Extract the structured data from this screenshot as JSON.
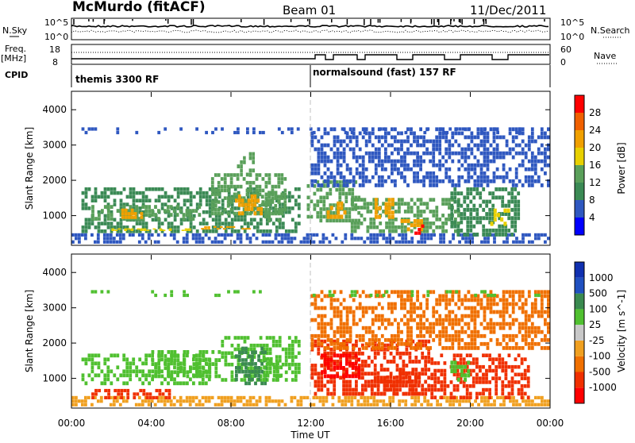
{
  "header": {
    "title": "McMurdo (fitACF)",
    "beam": "Beam 01",
    "date": "11/Dec/2011"
  },
  "noise_panel": {
    "left_label": "N.Sky",
    "right_label": "N.Search",
    "left_ticks": [
      "10^5",
      "10^0"
    ],
    "right_ticks": [
      "10^5",
      "10^0"
    ]
  },
  "freq_panel": {
    "left_label_1": "Freq.",
    "left_label_2": "[MHz]",
    "left_ticks": [
      "18",
      "8"
    ],
    "right_label": "Nave",
    "right_ticks": [
      "60",
      "0"
    ]
  },
  "cpid_panel": {
    "label": "CPID",
    "segments": [
      {
        "name": "themis 3300 RF",
        "start_hour": 0
      },
      {
        "name": "normalsound (fast) 157 RF",
        "start_hour": 12
      }
    ]
  },
  "colors": {
    "power": [
      "#0000ff",
      "#2f58c0",
      "#3b8a55",
      "#5aa05a",
      "#e8d000",
      "#f0a000",
      "#f06000",
      "#ff0000"
    ],
    "velocity": [
      "#ff0000",
      "#f03000",
      "#f07000",
      "#f0a020",
      "#c8c8c8",
      "#50c030",
      "#3a8a50",
      "#2050c0",
      "#1030b0"
    ]
  },
  "chart_data": [
    {
      "type": "heatmap",
      "title": "",
      "xlabel": "",
      "ylabel": "Slant Range [km]",
      "xlim": [
        0,
        24
      ],
      "ylim": [
        180,
        4500
      ],
      "yticks": [
        "1000",
        "2000",
        "3000",
        "4000"
      ],
      "colorbar": {
        "label": "Power [dB]",
        "ticks": [
          "28",
          "24",
          "20",
          "16",
          "12",
          "8",
          "4"
        ],
        "range": [
          0,
          30
        ]
      },
      "regions": [
        {
          "t0": 0.0,
          "t1": 24.0,
          "r0": 200,
          "r1": 500,
          "level": 6
        },
        {
          "t0": 0.5,
          "t1": 11.5,
          "r0": 500,
          "r1": 1800,
          "level": 8
        },
        {
          "t0": 1.0,
          "t1": 6.5,
          "r0": 850,
          "r1": 1300,
          "level": 14
        },
        {
          "t0": 2.5,
          "t1": 3.6,
          "r0": 900,
          "r1": 1200,
          "level": 20
        },
        {
          "t0": 2.0,
          "t1": 6.0,
          "r0": 560,
          "r1": 640,
          "level": 18
        },
        {
          "t0": 7.0,
          "t1": 10.8,
          "r0": 1000,
          "r1": 2200,
          "level": 14
        },
        {
          "t0": 8.2,
          "t1": 9.6,
          "r0": 1000,
          "r1": 1600,
          "level": 22
        },
        {
          "t0": 6.5,
          "t1": 9.0,
          "r0": 600,
          "r1": 700,
          "level": 20
        },
        {
          "t0": 8.3,
          "t1": 9.2,
          "r0": 2100,
          "r1": 2800,
          "level": 12
        },
        {
          "t0": 9.5,
          "t1": 10.5,
          "r0": 800,
          "r1": 1700,
          "level": 14
        },
        {
          "t0": 11.8,
          "t1": 14.5,
          "r0": 800,
          "r1": 2000,
          "level": 14
        },
        {
          "t0": 12.8,
          "t1": 13.8,
          "r0": 900,
          "r1": 1400,
          "level": 22
        },
        {
          "t0": 14.0,
          "t1": 19.5,
          "r0": 500,
          "r1": 1500,
          "level": 12
        },
        {
          "t0": 15.2,
          "t1": 16.2,
          "r0": 900,
          "r1": 1500,
          "level": 20
        },
        {
          "t0": 16.5,
          "t1": 17.8,
          "r0": 550,
          "r1": 900,
          "level": 22
        },
        {
          "t0": 17.2,
          "t1": 17.7,
          "r0": 450,
          "r1": 750,
          "level": 28
        },
        {
          "t0": 19.0,
          "t1": 22.5,
          "r0": 400,
          "r1": 1800,
          "level": 10
        },
        {
          "t0": 21.0,
          "t1": 22.0,
          "r0": 700,
          "r1": 1200,
          "level": 18
        },
        {
          "t0": 12.0,
          "t1": 24.0,
          "r0": 1800,
          "r1": 3500,
          "level": 6
        },
        {
          "t0": 0.5,
          "t1": 24.0,
          "r0": 3300,
          "r1": 3500,
          "level": 4
        }
      ]
    },
    {
      "type": "heatmap",
      "title": "",
      "xlabel": "Time UT",
      "ylabel": "Slant Range [km]",
      "xlim": [
        0,
        24
      ],
      "ylim": [
        180,
        4500
      ],
      "xticks": [
        "00:00",
        "04:00",
        "08:00",
        "12:00",
        "16:00",
        "20:00",
        "00:00"
      ],
      "yticks": [
        "1000",
        "2000",
        "3000",
        "4000"
      ],
      "colorbar": {
        "label": "Velocity [m s^-1]",
        "ticks": [
          "1000",
          "500",
          "100",
          "25",
          "-25",
          "-100",
          "-500",
          "-1000"
        ],
        "range": [
          -1000,
          1000
        ]
      },
      "regions": [
        {
          "t0": 0.0,
          "t1": 24.0,
          "r0": 200,
          "r1": 500,
          "level": 0
        },
        {
          "t0": 0.5,
          "t1": 7.0,
          "r0": 800,
          "r1": 1700,
          "level": 120
        },
        {
          "t0": 1.0,
          "t1": 5.0,
          "r0": 400,
          "r1": 700,
          "level": -150
        },
        {
          "t0": 4.0,
          "t1": 7.5,
          "r0": 1000,
          "r1": 1800,
          "level": 150
        },
        {
          "t0": 7.5,
          "t1": 11.5,
          "r0": 900,
          "r1": 2200,
          "level": 150
        },
        {
          "t0": 8.2,
          "t1": 9.8,
          "r0": 800,
          "r1": 1900,
          "level": 700
        },
        {
          "t0": 9.6,
          "t1": 10.6,
          "r0": 900,
          "r1": 1600,
          "level": 300
        },
        {
          "t0": 12.0,
          "t1": 18.0,
          "r0": 500,
          "r1": 2100,
          "level": -200
        },
        {
          "t0": 12.5,
          "t1": 14.5,
          "r0": 1000,
          "r1": 1700,
          "level": -500
        },
        {
          "t0": 15.0,
          "t1": 17.5,
          "r0": 500,
          "r1": 1200,
          "level": -450
        },
        {
          "t0": 18.0,
          "t1": 23.0,
          "r0": 400,
          "r1": 1700,
          "level": -120
        },
        {
          "t0": 19.0,
          "t1": 20.0,
          "r0": 900,
          "r1": 1500,
          "level": 150
        },
        {
          "t0": 12.0,
          "t1": 24.0,
          "r0": 1800,
          "r1": 3500,
          "level": -60
        },
        {
          "t0": 0.5,
          "t1": 24.0,
          "r0": 3300,
          "r1": 3500,
          "level": 200
        }
      ]
    }
  ]
}
